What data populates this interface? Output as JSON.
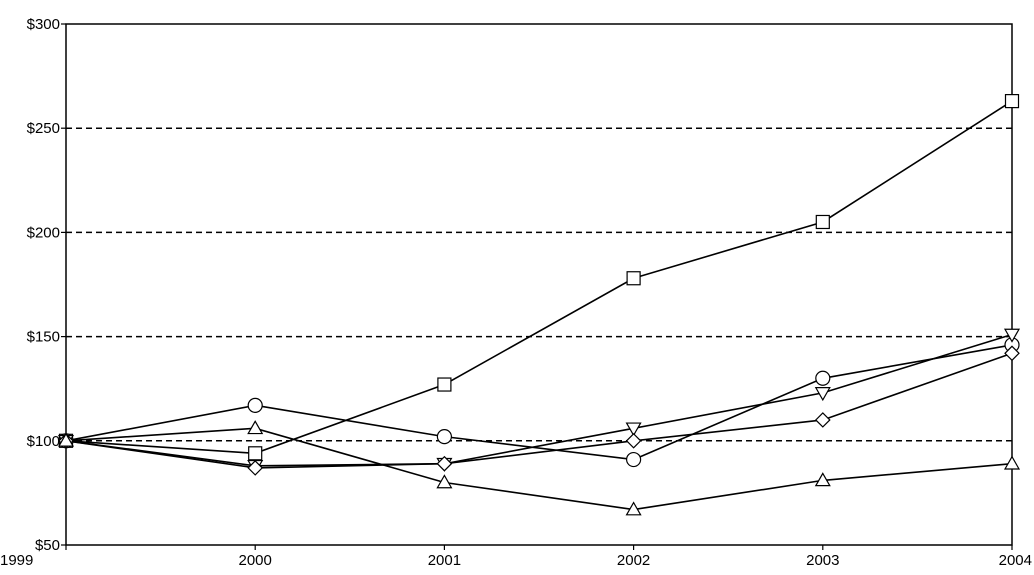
{
  "chart_data": {
    "type": "line",
    "title": "",
    "xlabel": "",
    "ylabel": "",
    "categories": [
      "1999",
      "2000",
      "2001",
      "2002",
      "2003",
      "2004"
    ],
    "ylim": [
      50,
      300
    ],
    "yticks": [
      50,
      100,
      150,
      200,
      250,
      300
    ],
    "ytick_labels": [
      "$50",
      "$100",
      "$150",
      "$200",
      "$250",
      "$300"
    ],
    "dashed_gridlines_at": [
      100,
      150,
      200,
      250
    ],
    "legend": "none",
    "series": [
      {
        "marker": "square",
        "values": [
          100,
          94,
          127,
          178,
          205,
          263
        ]
      },
      {
        "marker": "circle",
        "values": [
          100,
          117,
          102,
          91,
          130,
          146
        ]
      },
      {
        "marker": "triangle-down",
        "values": [
          100,
          88,
          89,
          106,
          123,
          151
        ]
      },
      {
        "marker": "diamond",
        "values": [
          100,
          87,
          89,
          100,
          110,
          142
        ]
      },
      {
        "marker": "triangle-up",
        "values": [
          100,
          106,
          80,
          67,
          81,
          89
        ]
      }
    ]
  }
}
